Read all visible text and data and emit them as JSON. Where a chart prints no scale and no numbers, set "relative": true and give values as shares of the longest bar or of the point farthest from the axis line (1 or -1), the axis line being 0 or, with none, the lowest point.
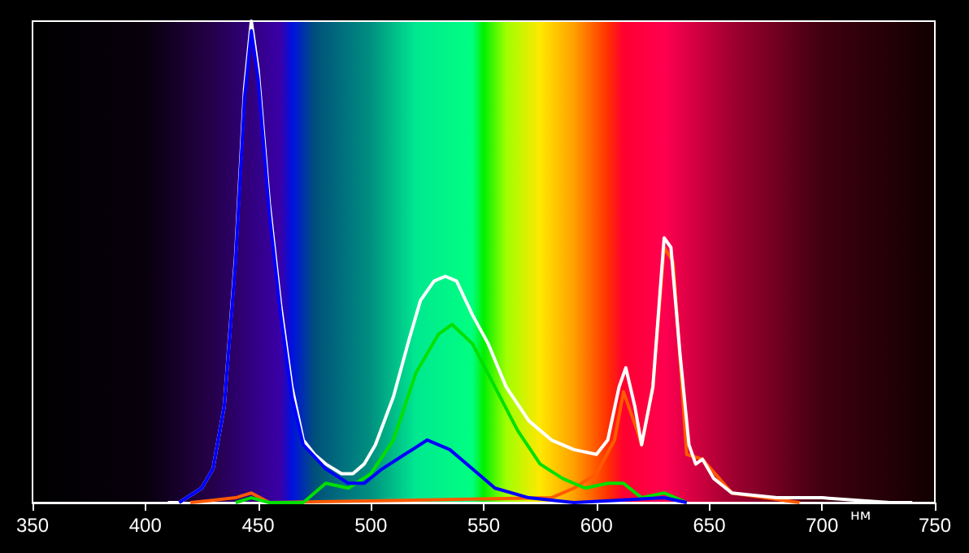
{
  "chart_data": {
    "type": "line",
    "xlabel": "нм",
    "relative": true,
    "xlim": [
      350,
      750
    ],
    "xticks": [
      350,
      400,
      450,
      500,
      550,
      600,
      650,
      700,
      750
    ],
    "grid": false,
    "marker": "none",
    "line_style": "solid",
    "series": [
      {
        "color": "#ff5a00",
        "x": [
          420,
          440,
          447,
          455,
          580,
          590,
          600,
          608,
          612,
          618,
          620,
          625,
          630,
          634,
          640,
          647,
          660,
          690
        ],
        "values": [
          0.0,
          0.01,
          0.02,
          0.0,
          0.01,
          0.03,
          0.06,
          0.13,
          0.23,
          0.15,
          0.12,
          0.24,
          0.53,
          0.5,
          0.1,
          0.09,
          0.02,
          0.0
        ]
      },
      {
        "color": "#00e000",
        "x": [
          440,
          447,
          455,
          470,
          480,
          490,
          500,
          510,
          520,
          530,
          536,
          545,
          555,
          565,
          575,
          585,
          595,
          605,
          612,
          620,
          630,
          640
        ],
        "values": [
          0.0,
          0.01,
          0.0,
          0.0,
          0.04,
          0.03,
          0.06,
          0.13,
          0.27,
          0.35,
          0.37,
          0.33,
          0.24,
          0.15,
          0.08,
          0.05,
          0.03,
          0.04,
          0.04,
          0.01,
          0.02,
          0.0
        ]
      },
      {
        "color": "#ffffff",
        "x": [
          410,
          415,
          425,
          430,
          435,
          440,
          444,
          447,
          450,
          455,
          460,
          465,
          470,
          475,
          480,
          487,
          492,
          497,
          502,
          510,
          517,
          522,
          528,
          533,
          538,
          545,
          552,
          560,
          570,
          580,
          590,
          600,
          605,
          610,
          613,
          617,
          620,
          625,
          630,
          633,
          637,
          641,
          644,
          647,
          652,
          660,
          680,
          700,
          730,
          740
        ],
        "values": [
          0.0,
          0.0,
          0.03,
          0.07,
          0.2,
          0.51,
          0.86,
          1.0,
          0.9,
          0.62,
          0.41,
          0.24,
          0.13,
          0.1,
          0.08,
          0.06,
          0.06,
          0.08,
          0.12,
          0.22,
          0.34,
          0.42,
          0.46,
          0.47,
          0.46,
          0.39,
          0.33,
          0.24,
          0.17,
          0.13,
          0.11,
          0.1,
          0.13,
          0.24,
          0.28,
          0.2,
          0.12,
          0.24,
          0.55,
          0.53,
          0.31,
          0.12,
          0.08,
          0.09,
          0.05,
          0.02,
          0.01,
          0.01,
          0.0,
          0.0
        ]
      },
      {
        "color": "#0000ff",
        "x": [
          415,
          425,
          430,
          435,
          440,
          444,
          447,
          450,
          455,
          460,
          465,
          470,
          480,
          490,
          497,
          505,
          515,
          525,
          535,
          545,
          555,
          570,
          590,
          630,
          640
        ],
        "values": [
          0.0,
          0.03,
          0.07,
          0.2,
          0.5,
          0.84,
          0.98,
          0.88,
          0.6,
          0.39,
          0.22,
          0.12,
          0.07,
          0.04,
          0.04,
          0.07,
          0.1,
          0.13,
          0.11,
          0.07,
          0.03,
          0.01,
          0.0,
          0.01,
          0.0
        ]
      }
    ]
  }
}
